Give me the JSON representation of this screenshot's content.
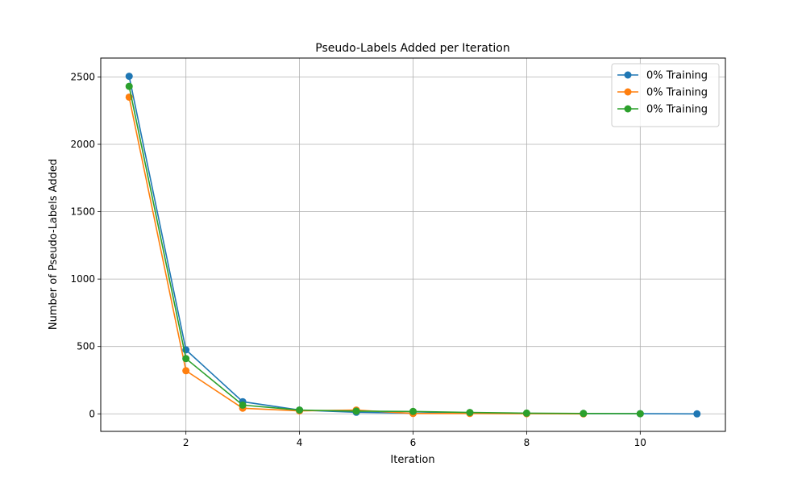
{
  "chart_data": {
    "type": "line",
    "title": "Pseudo-Labels Added per Iteration",
    "xlabel": "Iteration",
    "ylabel": "Number of Pseudo-Labels Added",
    "xlim": [
      0.5,
      11.5
    ],
    "ylim": [
      -130,
      2640
    ],
    "x_ticks": [
      2,
      4,
      6,
      8,
      10
    ],
    "y_ticks": [
      0,
      500,
      1000,
      1500,
      2000,
      2500
    ],
    "grid": true,
    "legend_position": "top-right",
    "series": [
      {
        "name": "0% Training",
        "color": "#1f77b4",
        "x": [
          1,
          2,
          3,
          4,
          5,
          6,
          7,
          8,
          9,
          10,
          11
        ],
        "y": [
          2505,
          475,
          90,
          28,
          12,
          5,
          8,
          3,
          2,
          1,
          0
        ]
      },
      {
        "name": "0% Training",
        "color": "#ff7f0e",
        "x": [
          1,
          2,
          3,
          4,
          5,
          6,
          7,
          8,
          9
        ],
        "y": [
          2350,
          320,
          42,
          22,
          28,
          3,
          3,
          1,
          0
        ]
      },
      {
        "name": "0% Training",
        "color": "#2ca02c",
        "x": [
          1,
          2,
          3,
          4,
          5,
          6,
          7,
          8,
          9,
          10
        ],
        "y": [
          2430,
          410,
          65,
          28,
          20,
          18,
          10,
          5,
          3,
          1
        ]
      }
    ]
  }
}
